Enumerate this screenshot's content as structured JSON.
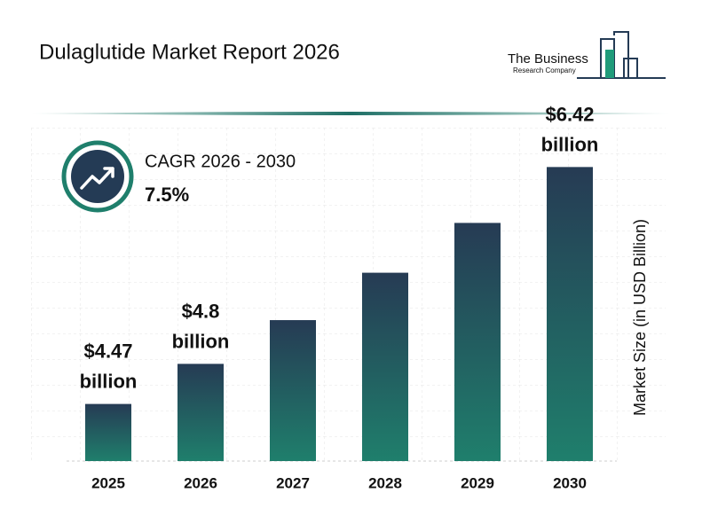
{
  "header": {
    "title": "Dulaglutide Market Report 2026",
    "logo_line1": "The Business",
    "logo_line2": "Research Company"
  },
  "chart_data": {
    "type": "bar",
    "cagr_label": "CAGR 2026 - 2030",
    "cagr_value": "7.5%",
    "y_label": "Market Size (in USD Billion)",
    "categories": [
      "2025",
      "2026",
      "2027",
      "2028",
      "2029",
      "2030"
    ],
    "values": [
      4.47,
      4.8,
      5.16,
      5.55,
      5.96,
      6.42
    ],
    "value_labels": [
      "$4.47 billion",
      "$4.8 billion",
      null,
      null,
      null,
      "$6.42 billion"
    ],
    "gradient": [
      "#263b54",
      "#1f7f6c"
    ],
    "ylim": [
      4,
      6.7
    ]
  }
}
